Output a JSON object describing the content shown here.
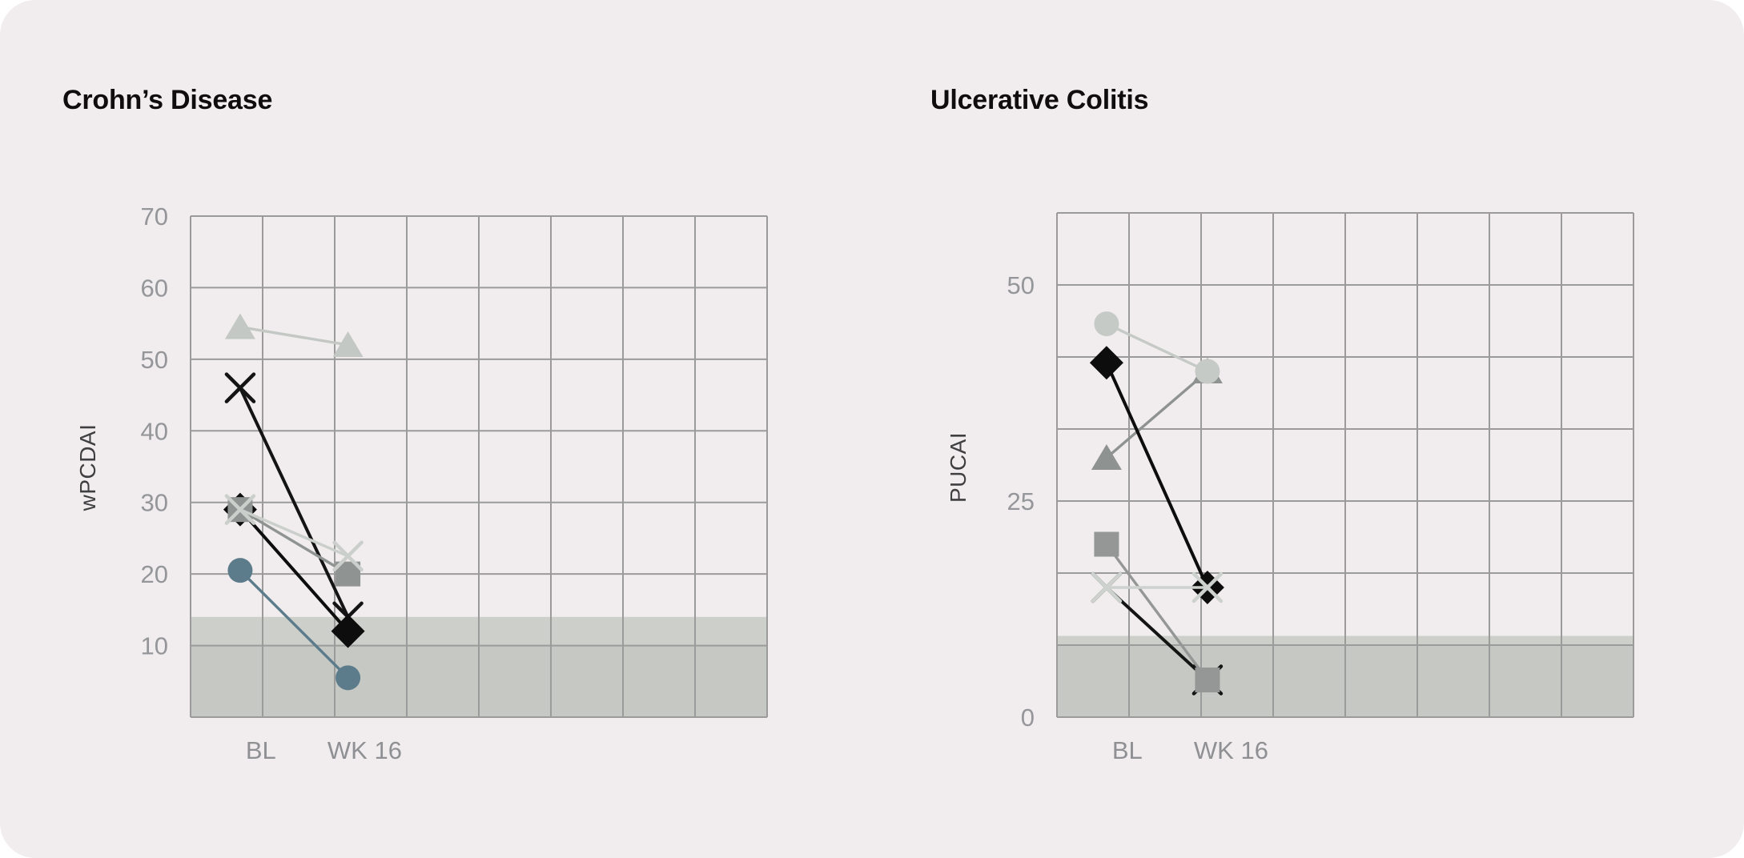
{
  "page": {
    "background": "#ffffff",
    "panel_color": "#f1edee",
    "gridline_color": "#9a9b9a",
    "title_color": "#0f0d0e",
    "tick_label_color": "#95969a",
    "x_label_color": "#8f9094",
    "y_axis_label_color": "#3f3f42",
    "band_upper_color": "#cdd0ca",
    "band_lower_color": "#c5c8c3"
  },
  "chart_data": [
    {
      "type": "line",
      "title": "Crohn’s Disease",
      "ylabel": "wPCDAI",
      "x_categories": [
        "BL",
        "WK 16"
      ],
      "ylim": [
        0,
        70
      ],
      "y_gridline_step": 10,
      "y_ticks": [
        70,
        60,
        50,
        40,
        30,
        20,
        10
      ],
      "columns": 8,
      "grid": true,
      "legend": "none",
      "x_positions": [
        0.086,
        0.273
      ],
      "x_label_positions": [
        0.122,
        0.302
      ],
      "remission_band": {
        "upper_top": 14,
        "lower_top": 10
      },
      "series": [
        {
          "name": "triangle",
          "marker": "triangle",
          "color": "#c4c8c5",
          "values": [
            54.5,
            52
          ]
        },
        {
          "name": "x-dark",
          "marker": "x",
          "color": "#141414",
          "values": [
            46,
            14
          ]
        },
        {
          "name": "diamond",
          "marker": "diamond",
          "color": "#0d0d0d",
          "values": [
            29,
            12
          ]
        },
        {
          "name": "square",
          "marker": "square",
          "color": "#8f9391",
          "values": [
            29,
            20
          ]
        },
        {
          "name": "x-light",
          "marker": "x",
          "color": "#cbcfcc",
          "values": [
            29,
            22.5
          ]
        },
        {
          "name": "circle",
          "marker": "circle",
          "color": "#5d7c8b",
          "values": [
            20.5,
            5.5
          ]
        }
      ]
    },
    {
      "type": "line",
      "title": "Ulcerative Colitis",
      "ylabel": "PUCAI",
      "x_categories": [
        "BL",
        "WK 16"
      ],
      "ylim": [
        0,
        58.333
      ],
      "y_gridline_step": 8.333,
      "y_ticks": [
        50,
        25,
        0
      ],
      "columns": 8,
      "grid": true,
      "legend": "none",
      "x_positions": [
        0.086,
        0.261
      ],
      "x_label_positions": [
        0.122,
        0.302
      ],
      "remission_band": {
        "upper_top": 9.4,
        "lower_top": 8.333
      },
      "series": [
        {
          "name": "triangle",
          "marker": "triangle",
          "color": "#8e9290",
          "values": [
            30,
            40
          ]
        },
        {
          "name": "x-dark",
          "marker": "x",
          "color": "#141414",
          "values": [
            15,
            4.3
          ]
        },
        {
          "name": "square",
          "marker": "square",
          "color": "#949795",
          "values": [
            20,
            4.3
          ]
        },
        {
          "name": "diamond",
          "marker": "diamond",
          "color": "#0d0d0d",
          "values": [
            41,
            15
          ]
        },
        {
          "name": "x-light",
          "marker": "x",
          "color": "#ced2cf",
          "values": [
            15,
            15
          ]
        },
        {
          "name": "circle",
          "marker": "circle",
          "color": "#c6cac7",
          "values": [
            45.5,
            40
          ]
        }
      ]
    }
  ]
}
